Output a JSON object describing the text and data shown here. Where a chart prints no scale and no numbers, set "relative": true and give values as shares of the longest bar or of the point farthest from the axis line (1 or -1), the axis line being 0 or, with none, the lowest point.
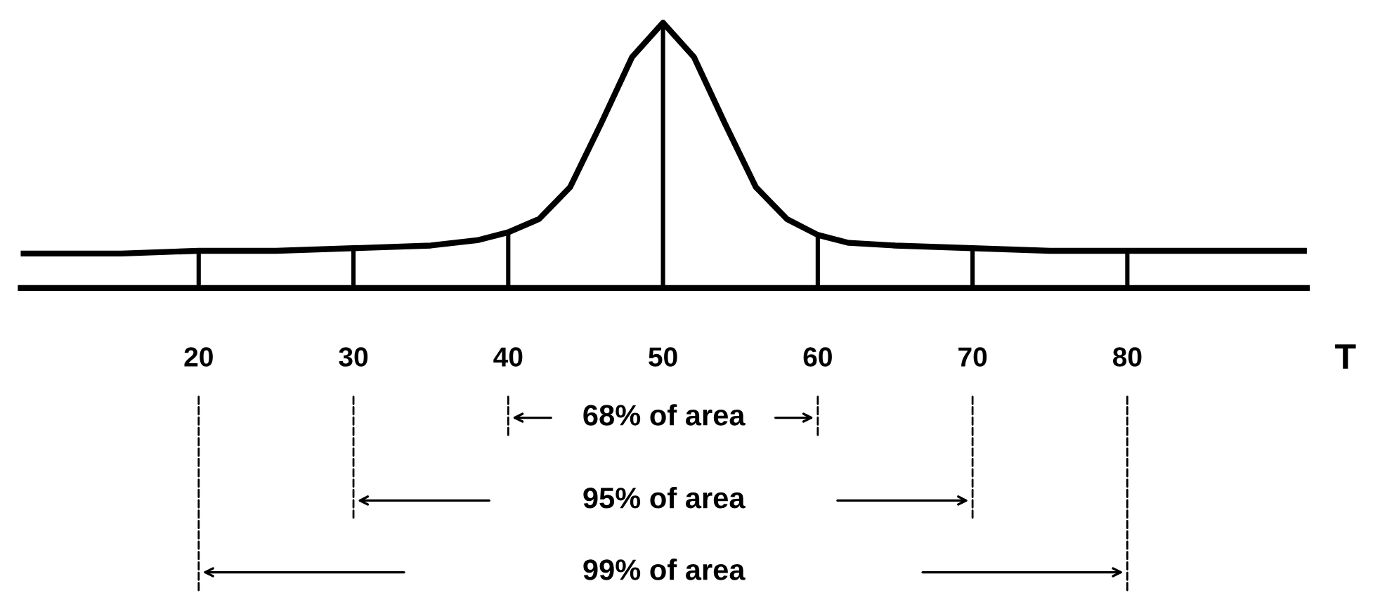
{
  "chart_data": {
    "type": "line",
    "relative": true,
    "xlabel": "T",
    "x": [
      8.5,
      15,
      20,
      25,
      30,
      35,
      38,
      40,
      42,
      44,
      46,
      48,
      50,
      52,
      54,
      56,
      58,
      60,
      62,
      65,
      70,
      75,
      80,
      85,
      91.6
    ],
    "series": [
      {
        "color": "#000000",
        "values": [
          0.13,
          0.13,
          0.14,
          0.14,
          0.15,
          0.16,
          0.18,
          0.21,
          0.26,
          0.38,
          0.62,
          0.87,
          1,
          0.87,
          0.62,
          0.38,
          0.26,
          0.2,
          0.17,
          0.16,
          0.15,
          0.14,
          0.14,
          0.14,
          0.14
        ]
      }
    ],
    "xlim": [
      8.5,
      91.6
    ],
    "xticks": [
      20,
      30,
      40,
      50,
      60,
      70,
      80
    ],
    "ref_lines": [
      {
        "axis": "x",
        "value": 20,
        "color": "#000000"
      },
      {
        "axis": "x",
        "value": 30,
        "color": "#000000"
      },
      {
        "axis": "x",
        "value": 40,
        "color": "#000000"
      },
      {
        "axis": "x",
        "value": 50,
        "color": "#000000"
      },
      {
        "axis": "x",
        "value": 60,
        "color": "#000000"
      },
      {
        "axis": "x",
        "value": 70,
        "color": "#000000"
      },
      {
        "axis": "x",
        "value": 80,
        "color": "#000000"
      }
    ],
    "annotations": [
      "68% of area",
      "95% of area",
      "99% of area"
    ],
    "grid": false,
    "legend": false,
    "marker": "none",
    "line_style": "solid"
  }
}
